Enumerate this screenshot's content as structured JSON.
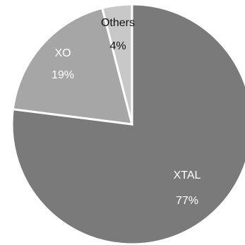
{
  "chart_data": {
    "type": "pie",
    "slices": [
      {
        "label": "XTAL",
        "value": 77,
        "value_label": "77%",
        "color": "#7a7a7a",
        "label_color": "#ffffff"
      },
      {
        "label": "XO",
        "value": 19,
        "value_label": "19%",
        "color": "#a6a6a6",
        "label_color": "#ffffff"
      },
      {
        "label": "Others",
        "value": 4,
        "value_label": "4%",
        "color": "#c8c8c8",
        "label_color": "#111111"
      }
    ],
    "start_angle": "12 o'clock",
    "direction": "clockwise",
    "title": "",
    "legend": "none"
  }
}
